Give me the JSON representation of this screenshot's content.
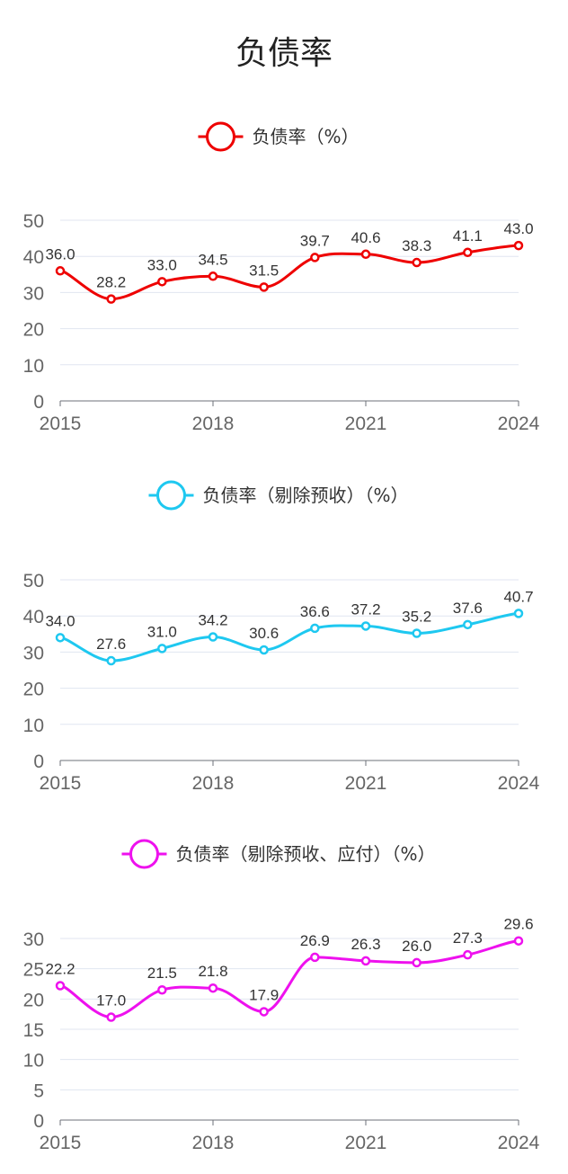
{
  "page": {
    "title": "负债率"
  },
  "chart_data": [
    {
      "type": "line",
      "title": "",
      "legend": "负债率（%）",
      "color": "#ee0000",
      "x": [
        2015,
        2016,
        2017,
        2018,
        2019,
        2020,
        2021,
        2022,
        2023,
        2024
      ],
      "x_tick_labels": [
        "2015",
        "2018",
        "2021",
        "2024"
      ],
      "values": [
        36.0,
        28.2,
        33.0,
        34.5,
        31.5,
        39.7,
        40.6,
        38.3,
        41.1,
        43.0
      ],
      "value_labels": [
        "36.0",
        "28.2",
        "33.0",
        "34.5",
        "31.5",
        "39.7",
        "40.6",
        "38.3",
        "41.1",
        "43.0"
      ],
      "ylim": [
        0,
        50
      ],
      "y_ticks": [
        0,
        10,
        20,
        30,
        40,
        50
      ],
      "smooth": true
    },
    {
      "type": "line",
      "title": "",
      "legend": "负债率（剔除预收）（%）",
      "color": "#1ec8f0",
      "x": [
        2015,
        2016,
        2017,
        2018,
        2019,
        2020,
        2021,
        2022,
        2023,
        2024
      ],
      "x_tick_labels": [
        "2015",
        "2018",
        "2021",
        "2024"
      ],
      "values": [
        34.0,
        27.6,
        31.0,
        34.2,
        30.6,
        36.6,
        37.2,
        35.2,
        37.6,
        40.7
      ],
      "value_labels": [
        "34.0",
        "27.6",
        "31.0",
        "34.2",
        "30.6",
        "36.6",
        "37.2",
        "35.2",
        "37.6",
        "40.7"
      ],
      "ylim": [
        0,
        50
      ],
      "y_ticks": [
        0,
        10,
        20,
        30,
        40,
        50
      ],
      "smooth": true
    },
    {
      "type": "line",
      "title": "",
      "legend": "负债率（剔除预收、应付）（%）",
      "color": "#ee11ee",
      "x": [
        2015,
        2016,
        2017,
        2018,
        2019,
        2020,
        2021,
        2022,
        2023,
        2024
      ],
      "x_tick_labels": [
        "2015",
        "2018",
        "2021",
        "2024"
      ],
      "values": [
        22.2,
        17.0,
        21.5,
        21.8,
        17.9,
        26.9,
        26.3,
        26.0,
        27.3,
        29.6
      ],
      "value_labels": [
        "22.2",
        "17.0",
        "21.5",
        "21.8",
        "17.9",
        "26.9",
        "26.3",
        "26.0",
        "27.3",
        "29.6"
      ],
      "ylim": [
        0,
        30
      ],
      "y_ticks": [
        0,
        5,
        10,
        15,
        20,
        25,
        30
      ],
      "smooth": true
    }
  ]
}
